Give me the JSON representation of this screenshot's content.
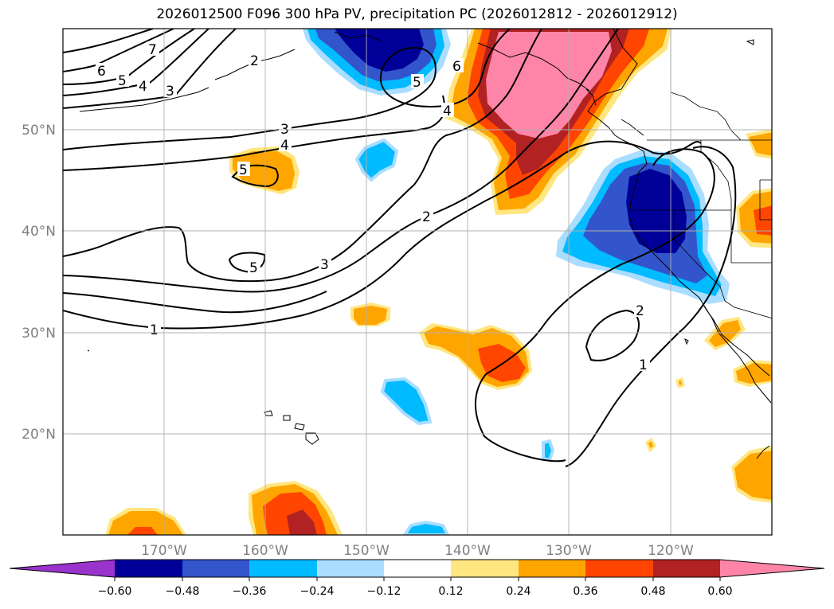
{
  "title": "2026012500 F096 300 hPa PV, precipitation PC (2026012812 - 2026012912)",
  "map": {
    "lon_ticks": [
      "170°W",
      "160°W",
      "150°W",
      "140°W",
      "130°W",
      "120°W"
    ],
    "lat_ticks": [
      "50°N",
      "40°N",
      "30°N",
      "20°N"
    ],
    "contour_labels": [
      "7",
      "6",
      "5",
      "4",
      "3",
      "2",
      "3",
      "4",
      "5",
      "5",
      "3",
      "2",
      "1",
      "2",
      "1",
      "4",
      "5",
      "6"
    ]
  },
  "colorbar": {
    "ticks": [
      "−0.60",
      "−0.48",
      "−0.36",
      "−0.24",
      "−0.12",
      "0.12",
      "0.24",
      "0.36",
      "0.48",
      "0.60"
    ],
    "colors": [
      "#9933cc",
      "#000099",
      "#3355cc",
      "#00bbff",
      "#aaddff",
      "#ffffff",
      "#ffe680",
      "#ffa500",
      "#ff4500",
      "#b22222",
      "#ff85a8"
    ]
  },
  "colors": {
    "pos1": "#ffe680",
    "pos2": "#ffa500",
    "pos3": "#ff4500",
    "pos4": "#b22222",
    "pos5": "#ff85a8",
    "neg1": "#aaddff",
    "neg2": "#00bbff",
    "neg3": "#3355cc",
    "neg4": "#000099"
  }
}
